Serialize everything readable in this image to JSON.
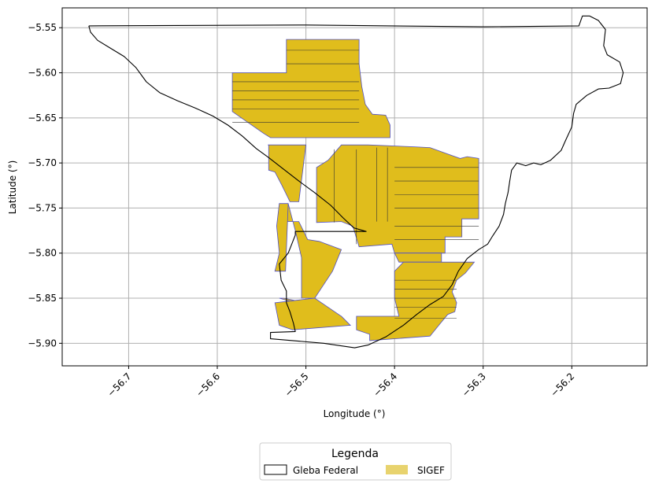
{
  "chart_data": {
    "type": "map",
    "title": "",
    "xlabel": "Longitude (°)",
    "ylabel": "Latitude (°)",
    "xlim": [
      -56.775,
      -56.115
    ],
    "ylim": [
      -5.925,
      -5.528
    ],
    "grid": true,
    "x_ticks": [
      -56.7,
      -56.6,
      -56.5,
      -56.4,
      -56.3,
      -56.2
    ],
    "x_tick_labels": [
      "−56.7",
      "−56.6",
      "−56.5",
      "−56.4",
      "−56.3",
      "−56.2"
    ],
    "y_ticks": [
      -5.55,
      -5.6,
      -5.65,
      -5.7,
      -5.75,
      -5.8,
      -5.85,
      -5.9
    ],
    "y_tick_labels": [
      "−5.55",
      "−5.60",
      "−5.65",
      "−5.70",
      "−5.75",
      "−5.80",
      "−5.85",
      "−5.90"
    ],
    "legend": {
      "title": "Legenda",
      "placement": "below",
      "entries": [
        {
          "label": "Gleba Federal",
          "style": "outline",
          "color": "#000000"
        },
        {
          "label": "SIGEF",
          "style": "fill",
          "color": "#e8d36e"
        }
      ]
    },
    "colors": {
      "gleba_stroke": "#000000",
      "sigef_fill": "#e0bd1c",
      "sigef_stroke": "#5050c8",
      "parcel_line": "#333333"
    },
    "gleba_federal": [
      [
        -56.745,
        -5.548
      ],
      [
        -56.743,
        -5.555
      ],
      [
        -56.735,
        -5.564
      ],
      [
        -56.72,
        -5.573
      ],
      [
        -56.705,
        -5.582
      ],
      [
        -56.692,
        -5.594
      ],
      [
        -56.68,
        -5.61
      ],
      [
        -56.665,
        -5.622
      ],
      [
        -56.645,
        -5.631
      ],
      [
        -56.625,
        -5.639
      ],
      [
        -56.605,
        -5.648
      ],
      [
        -56.588,
        -5.658
      ],
      [
        -56.572,
        -5.67
      ],
      [
        -56.556,
        -5.684
      ],
      [
        -56.542,
        -5.694
      ],
      [
        -56.525,
        -5.707
      ],
      [
        -56.508,
        -5.72
      ],
      [
        -56.49,
        -5.733
      ],
      [
        -56.472,
        -5.747
      ],
      [
        -56.458,
        -5.761
      ],
      [
        -56.446,
        -5.772
      ],
      [
        -56.432,
        -5.776
      ],
      [
        -56.512,
        -5.776
      ],
      [
        -56.512,
        -5.78
      ],
      [
        -56.52,
        -5.8
      ],
      [
        -56.53,
        -5.812
      ],
      [
        -56.528,
        -5.83
      ],
      [
        -56.522,
        -5.842
      ],
      [
        -56.522,
        -5.855
      ],
      [
        -56.518,
        -5.865
      ],
      [
        -56.514,
        -5.878
      ],
      [
        -56.512,
        -5.887
      ],
      [
        -56.54,
        -5.888
      ],
      [
        -56.54,
        -5.895
      ],
      [
        -56.48,
        -5.9
      ],
      [
        -56.445,
        -5.905
      ],
      [
        -56.43,
        -5.902
      ],
      [
        -56.41,
        -5.893
      ],
      [
        -56.39,
        -5.88
      ],
      [
        -56.375,
        -5.868
      ],
      [
        -56.36,
        -5.857
      ],
      [
        -56.345,
        -5.848
      ],
      [
        -56.335,
        -5.835
      ],
      [
        -56.328,
        -5.82
      ],
      [
        -56.318,
        -5.806
      ],
      [
        -56.305,
        -5.796
      ],
      [
        -56.295,
        -5.79
      ],
      [
        -56.29,
        -5.782
      ],
      [
        -56.282,
        -5.77
      ],
      [
        -56.277,
        -5.757
      ],
      [
        -56.275,
        -5.745
      ],
      [
        -56.272,
        -5.733
      ],
      [
        -56.27,
        -5.72
      ],
      [
        -56.268,
        -5.708
      ],
      [
        -56.262,
        -5.7
      ],
      [
        -56.252,
        -5.703
      ],
      [
        -56.243,
        -5.7
      ],
      [
        -56.235,
        -5.702
      ],
      [
        -56.224,
        -5.697
      ],
      [
        -56.212,
        -5.686
      ],
      [
        -56.207,
        -5.675
      ],
      [
        -56.2,
        -5.66
      ],
      [
        -56.198,
        -5.645
      ],
      [
        -56.195,
        -5.635
      ],
      [
        -56.183,
        -5.625
      ],
      [
        -56.17,
        -5.618
      ],
      [
        -56.158,
        -5.617
      ],
      [
        -56.145,
        -5.612
      ],
      [
        -56.142,
        -5.6
      ],
      [
        -56.146,
        -5.588
      ],
      [
        -56.16,
        -5.58
      ],
      [
        -56.164,
        -5.57
      ],
      [
        -56.162,
        -5.552
      ],
      [
        -56.17,
        -5.542
      ],
      [
        -56.18,
        -5.537
      ],
      [
        -56.188,
        -5.537
      ],
      [
        -56.192,
        -5.548
      ],
      [
        -56.3,
        -5.549
      ],
      [
        -56.5,
        -5.547
      ],
      [
        -56.745,
        -5.548
      ]
    ],
    "sigef_parcels": [
      [
        [
          -56.44,
          -5.563
        ],
        [
          -56.44,
          -5.59
        ],
        [
          -56.437,
          -5.615
        ],
        [
          -56.433,
          -5.635
        ],
        [
          -56.425,
          -5.646
        ],
        [
          -56.41,
          -5.647
        ],
        [
          -56.405,
          -5.658
        ],
        [
          -56.405,
          -5.672
        ],
        [
          -56.54,
          -5.672
        ],
        [
          -56.548,
          -5.667
        ],
        [
          -56.583,
          -5.643
        ],
        [
          -56.583,
          -5.6
        ],
        [
          -56.522,
          -5.6
        ],
        [
          -56.522,
          -5.563
        ]
      ],
      [
        [
          -56.543,
          -5.68
        ],
        [
          -56.5,
          -5.68
        ],
        [
          -56.508,
          -5.743
        ],
        [
          -56.518,
          -5.743
        ],
        [
          -56.527,
          -5.725
        ],
        [
          -56.535,
          -5.71
        ],
        [
          -56.542,
          -5.708
        ],
        [
          -56.542,
          -5.68
        ]
      ],
      [
        [
          -56.46,
          -5.68
        ],
        [
          -56.43,
          -5.68
        ],
        [
          -56.38,
          -5.682
        ],
        [
          -56.36,
          -5.683
        ],
        [
          -56.34,
          -5.69
        ],
        [
          -56.326,
          -5.695
        ],
        [
          -56.318,
          -5.693
        ],
        [
          -56.305,
          -5.695
        ],
        [
          -56.305,
          -5.762
        ],
        [
          -56.324,
          -5.762
        ],
        [
          -56.324,
          -5.782
        ],
        [
          -56.343,
          -5.782
        ],
        [
          -56.343,
          -5.8
        ],
        [
          -56.4,
          -5.8
        ],
        [
          -56.403,
          -5.79
        ],
        [
          -56.44,
          -5.793
        ],
        [
          -56.447,
          -5.77
        ],
        [
          -56.46,
          -5.765
        ],
        [
          -56.488,
          -5.766
        ],
        [
          -56.488,
          -5.705
        ],
        [
          -56.475,
          -5.697
        ]
      ],
      [
        [
          -56.52,
          -5.745
        ],
        [
          -56.512,
          -5.775
        ],
        [
          -56.505,
          -5.805
        ],
        [
          -56.505,
          -5.85
        ],
        [
          -56.49,
          -5.85
        ],
        [
          -56.47,
          -5.82
        ],
        [
          -56.46,
          -5.796
        ],
        [
          -56.485,
          -5.787
        ],
        [
          -56.498,
          -5.785
        ],
        [
          -56.508,
          -5.765
        ],
        [
          -56.523,
          -5.765
        ]
      ],
      [
        [
          -56.53,
          -5.745
        ],
        [
          -56.52,
          -5.745
        ],
        [
          -56.523,
          -5.82
        ],
        [
          -56.535,
          -5.82
        ],
        [
          -56.53,
          -5.8
        ],
        [
          -56.533,
          -5.77
        ]
      ],
      [
        [
          -56.4,
          -5.8
        ],
        [
          -56.395,
          -5.81
        ],
        [
          -56.347,
          -5.81
        ],
        [
          -56.347,
          -5.8
        ]
      ],
      [
        [
          -56.31,
          -5.81
        ],
        [
          -56.39,
          -5.81
        ],
        [
          -56.4,
          -5.82
        ],
        [
          -56.4,
          -5.85
        ],
        [
          -56.395,
          -5.87
        ],
        [
          -56.443,
          -5.87
        ],
        [
          -56.443,
          -5.885
        ],
        [
          -56.428,
          -5.89
        ],
        [
          -56.428,
          -5.897
        ],
        [
          -56.36,
          -5.892
        ],
        [
          -56.35,
          -5.88
        ],
        [
          -56.34,
          -5.868
        ],
        [
          -56.332,
          -5.865
        ],
        [
          -56.33,
          -5.855
        ],
        [
          -56.335,
          -5.843
        ],
        [
          -56.33,
          -5.83
        ],
        [
          -56.32,
          -5.822
        ]
      ],
      [
        [
          -56.53,
          -5.85
        ],
        [
          -56.512,
          -5.855
        ],
        [
          -56.51,
          -5.875
        ],
        [
          -56.5,
          -5.878
        ],
        [
          -56.45,
          -5.88
        ],
        [
          -56.46,
          -5.87
        ],
        [
          -56.5,
          -5.855
        ],
        [
          -56.525,
          -5.85
        ]
      ],
      [
        [
          -56.535,
          -5.855
        ],
        [
          -56.53,
          -5.88
        ],
        [
          -56.515,
          -5.885
        ],
        [
          -56.45,
          -5.88
        ],
        [
          -56.46,
          -5.87
        ],
        [
          -56.49,
          -5.85
        ]
      ]
    ]
  }
}
